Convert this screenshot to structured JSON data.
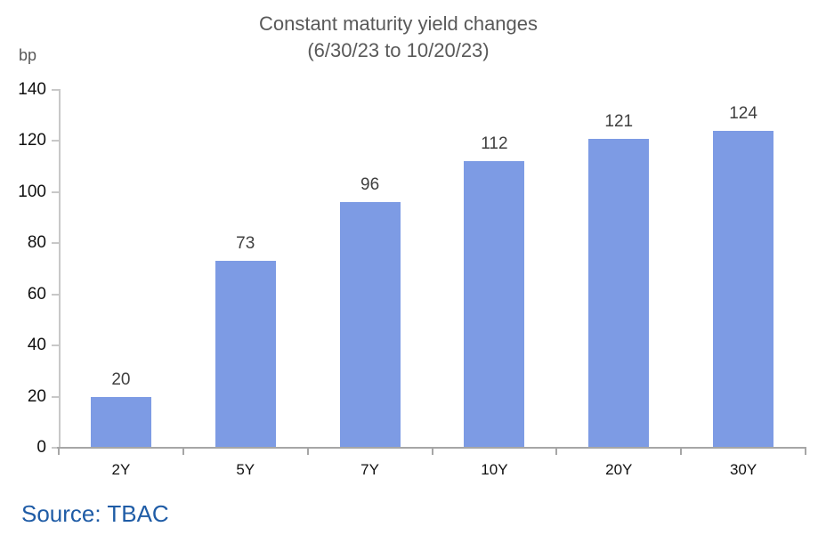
{
  "chart_data": {
    "type": "bar",
    "title": "Constant maturity yield changes",
    "subtitle": "(6/30/23 to 10/20/23)",
    "unit_label": "bp",
    "categories": [
      "2Y",
      "5Y",
      "7Y",
      "10Y",
      "20Y",
      "30Y"
    ],
    "values": [
      20,
      73,
      96,
      112,
      121,
      124
    ],
    "ylim": [
      0,
      140
    ],
    "yticks": [
      0,
      20,
      40,
      60,
      80,
      100,
      120,
      140
    ],
    "bar_color": "#7d9be4",
    "grid": "off",
    "legend": "none",
    "data_labels": "above-bars"
  },
  "source": {
    "label": "Source: TBAC"
  },
  "colors": {
    "title": "#595959",
    "source": "#1f5ca6",
    "bar": "#7d9be4",
    "y_axis_line": "#c8c8c8",
    "x_axis_line": "#a6a6a6"
  }
}
